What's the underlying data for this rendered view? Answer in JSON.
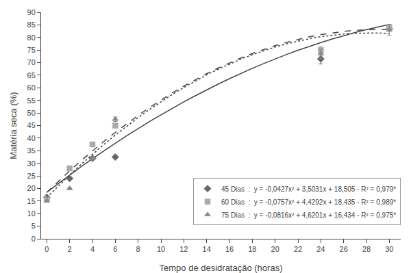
{
  "chart_data": {
    "type": "scatter",
    "xlabel": "Tempo de desidratação (horas)",
    "ylabel": "Matéria seca (%)",
    "xlim": [
      -0.5,
      31
    ],
    "ylim": [
      0,
      90
    ],
    "xticks": [
      0,
      2,
      4,
      6,
      8,
      10,
      12,
      14,
      16,
      18,
      20,
      22,
      24,
      26,
      28,
      30
    ],
    "yticks": [
      0,
      5,
      10,
      15,
      20,
      25,
      30,
      35,
      40,
      45,
      50,
      55,
      60,
      65,
      70,
      75,
      80,
      85,
      90
    ],
    "grid": false,
    "legend": "right",
    "series": [
      {
        "type": "line",
        "line_style": "solid",
        "color": "#444444",
        "x": [
          0,
          1,
          2,
          3,
          4,
          5,
          6,
          7,
          8,
          9,
          10,
          11,
          12,
          13,
          14,
          15,
          16,
          17,
          18,
          19,
          20,
          21,
          22,
          23,
          24,
          25,
          26,
          27,
          28,
          29,
          30
        ],
        "values": [
          18.505,
          21.9654,
          25.3404,
          28.63,
          31.8342,
          34.953,
          37.9864,
          40.9344,
          43.797,
          46.5742,
          49.266,
          51.8724,
          54.3934,
          56.829,
          59.1792,
          61.444,
          63.6234,
          65.7174,
          67.726,
          69.6492,
          71.487,
          73.2394,
          74.9064,
          76.488,
          77.9842,
          79.395,
          80.7204,
          81.9604,
          83.115,
          84.1842,
          85.168
        ]
      },
      {
        "type": "scatter",
        "name": "45 Dias  :  y = -0,0427x² + 3,5031x + 18,505 - R² = 0,979*",
        "marker": "diamond",
        "color": "#666666",
        "x": [
          0,
          2,
          4,
          6,
          24,
          30
        ],
        "values": [
          16.5,
          24.0,
          32.0,
          32.5,
          71.5,
          83.5
        ],
        "error": [
          0.3,
          0.4,
          0.5,
          0.4,
          2.0,
          0.8
        ]
      },
      {
        "type": "line",
        "line_style": "dashed",
        "color": "#444444",
        "x": [
          0,
          1,
          2,
          3,
          4,
          5,
          6,
          7,
          8,
          9,
          10,
          11,
          12,
          13,
          14,
          15,
          16,
          17,
          18,
          19,
          20,
          21,
          22,
          23,
          24,
          25,
          26,
          27,
          28,
          29,
          30
        ],
        "values": [
          18.435,
          22.7885,
          26.9906,
          31.0413,
          34.9406,
          38.6885,
          42.285,
          45.7301,
          49.0238,
          52.1661,
          55.157,
          57.9965,
          60.6846,
          63.2213,
          65.6066,
          67.8405,
          69.923,
          71.8541,
          73.6338,
          75.2621,
          76.739,
          78.0645,
          79.2386,
          80.2613,
          81.1326,
          81.8525,
          82.421,
          82.8381,
          83.1038,
          83.2181,
          83.181
        ]
      },
      {
        "type": "scatter",
        "name": "60 Dias  :  y = -0,0757x² + 4,4292x + 18,435 - R² = 0,989*",
        "marker": "square",
        "color": "#aaaaaa",
        "x": [
          0,
          2,
          4,
          6,
          24,
          30
        ],
        "values": [
          16.0,
          28.0,
          37.5,
          45.0,
          75.0,
          84.0
        ],
        "error": [
          0.3,
          0.7,
          0.8,
          0.4,
          1.5,
          1.2
        ]
      },
      {
        "type": "line",
        "line_style": "dotted",
        "color": "#444444",
        "x": [
          0,
          1,
          2,
          3,
          4,
          5,
          6,
          7,
          8,
          9,
          10,
          11,
          12,
          13,
          14,
          15,
          16,
          17,
          18,
          19,
          20,
          21,
          22,
          23,
          24,
          25,
          26,
          27,
          28,
          29,
          30
        ],
        "values": [
          16.434,
          20.9725,
          25.3478,
          29.5599,
          33.6088,
          37.4945,
          41.217,
          44.7763,
          48.1724,
          51.4053,
          54.475,
          57.3815,
          60.1248,
          62.7049,
          65.1218,
          67.3755,
          69.466,
          71.3933,
          73.1574,
          74.7583,
          76.196,
          77.4705,
          78.5818,
          79.5299,
          80.3148,
          80.9365,
          81.395,
          81.6903,
          81.8224,
          81.7913,
          81.597
        ]
      },
      {
        "type": "scatter",
        "name": "75 Dias  :  y = -0,0816x² + 4,6201x + 16,434 - R² = 0,975*",
        "marker": "triangle",
        "color": "#888888",
        "x": [
          0,
          2,
          4,
          6,
          24,
          30
        ],
        "values": [
          15.0,
          20.0,
          32.0,
          47.5,
          73.5,
          83.0
        ],
        "error": [
          0.3,
          0.4,
          0.7,
          0.9,
          1.8,
          2.2
        ]
      }
    ]
  }
}
